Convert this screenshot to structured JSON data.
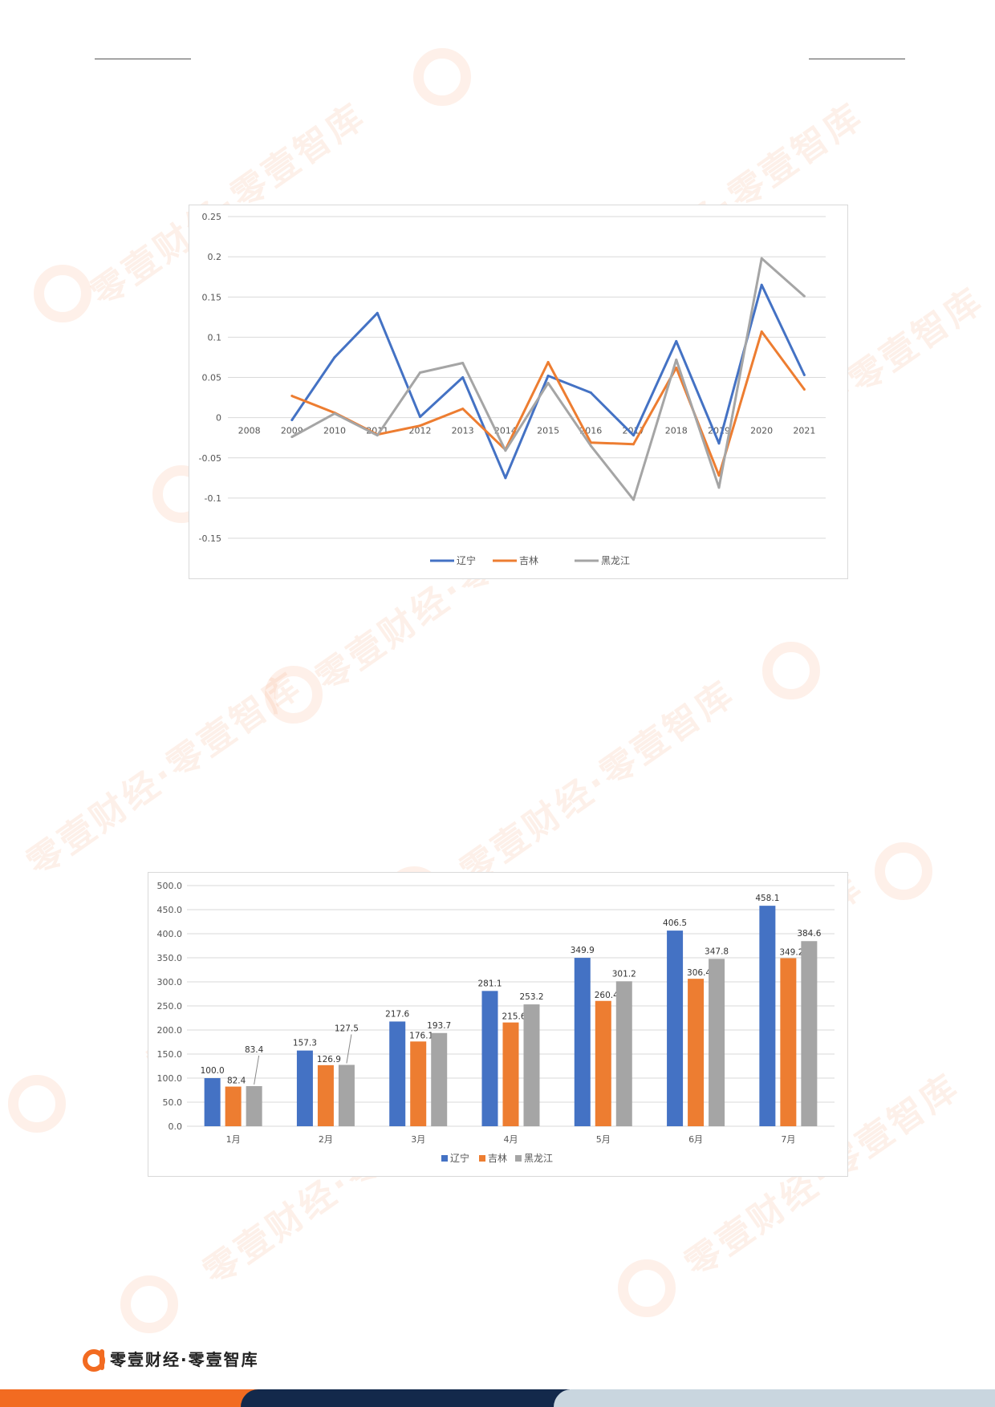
{
  "brand": {
    "footer_text": "零壹财经·零壹智库",
    "watermark_text": "零壹财经·零壹智库"
  },
  "colors": {
    "liaoning": "#4472c4",
    "jilin": "#ed7d31",
    "heilongjiang": "#a5a5a5",
    "brand_orange": "#f26b21",
    "brand_navy": "#13294b"
  },
  "chart_data": [
    {
      "type": "line",
      "title": "",
      "xlabel": "",
      "ylabel": "",
      "x": [
        "2008",
        "2009",
        "2010",
        "2011",
        "2012",
        "2013",
        "2014",
        "2015",
        "2016",
        "2017",
        "2018",
        "2019",
        "2020",
        "2021"
      ],
      "yticks": [
        "0.25",
        "0.2",
        "0.15",
        "0.1",
        "0.05",
        "0",
        "-0.05",
        "-0.1",
        "-0.15"
      ],
      "ylim": [
        -0.15,
        0.25
      ],
      "grid": true,
      "legend_position": "bottom",
      "series": [
        {
          "name": "辽宁",
          "values": [
            null,
            -0.003,
            0.075,
            0.13,
            0.001,
            0.05,
            -0.075,
            0.052,
            0.031,
            -0.022,
            0.095,
            -0.032,
            0.165,
            0.053
          ]
        },
        {
          "name": "吉林",
          "values": [
            null,
            0.027,
            0.006,
            -0.021,
            -0.01,
            0.011,
            -0.04,
            0.069,
            -0.031,
            -0.033,
            0.062,
            -0.072,
            0.107,
            0.035
          ]
        },
        {
          "name": "黑龙江",
          "values": [
            null,
            -0.024,
            0.005,
            -0.022,
            0.056,
            0.068,
            -0.041,
            0.043,
            -0.035,
            -0.102,
            0.072,
            -0.087,
            0.198,
            0.151
          ]
        }
      ]
    },
    {
      "type": "bar",
      "title": "",
      "xlabel": "",
      "ylabel": "",
      "categories": [
        "1月",
        "2月",
        "3月",
        "4月",
        "5月",
        "6月",
        "7月"
      ],
      "yticks": [
        "500.0",
        "450.0",
        "400.0",
        "350.0",
        "300.0",
        "250.0",
        "200.0",
        "150.0",
        "100.0",
        "50.0",
        "0.0"
      ],
      "ylim": [
        0,
        500
      ],
      "grid": true,
      "legend_position": "bottom",
      "series": [
        {
          "name": "辽宁",
          "values": [
            100.0,
            157.3,
            217.6,
            281.1,
            349.9,
            406.5,
            458.1
          ],
          "labels": [
            "100.0",
            "157.3",
            "217.6",
            "281.1",
            "349.9",
            "406.5",
            "458.1"
          ]
        },
        {
          "name": "吉林",
          "values": [
            82.4,
            126.9,
            176.1,
            215.6,
            260.4,
            306.4,
            349.2
          ],
          "labels": [
            "82.4",
            "126.9",
            "176.1",
            "215.6",
            "260.4",
            "306.4",
            "349.2"
          ]
        },
        {
          "name": "黑龙江",
          "values": [
            83.4,
            127.5,
            193.7,
            253.2,
            301.2,
            347.8,
            384.6
          ],
          "labels": [
            "83.4",
            "127.5",
            "193.7",
            "253.2",
            "301.2",
            "347.8",
            "384.6"
          ]
        }
      ]
    }
  ]
}
